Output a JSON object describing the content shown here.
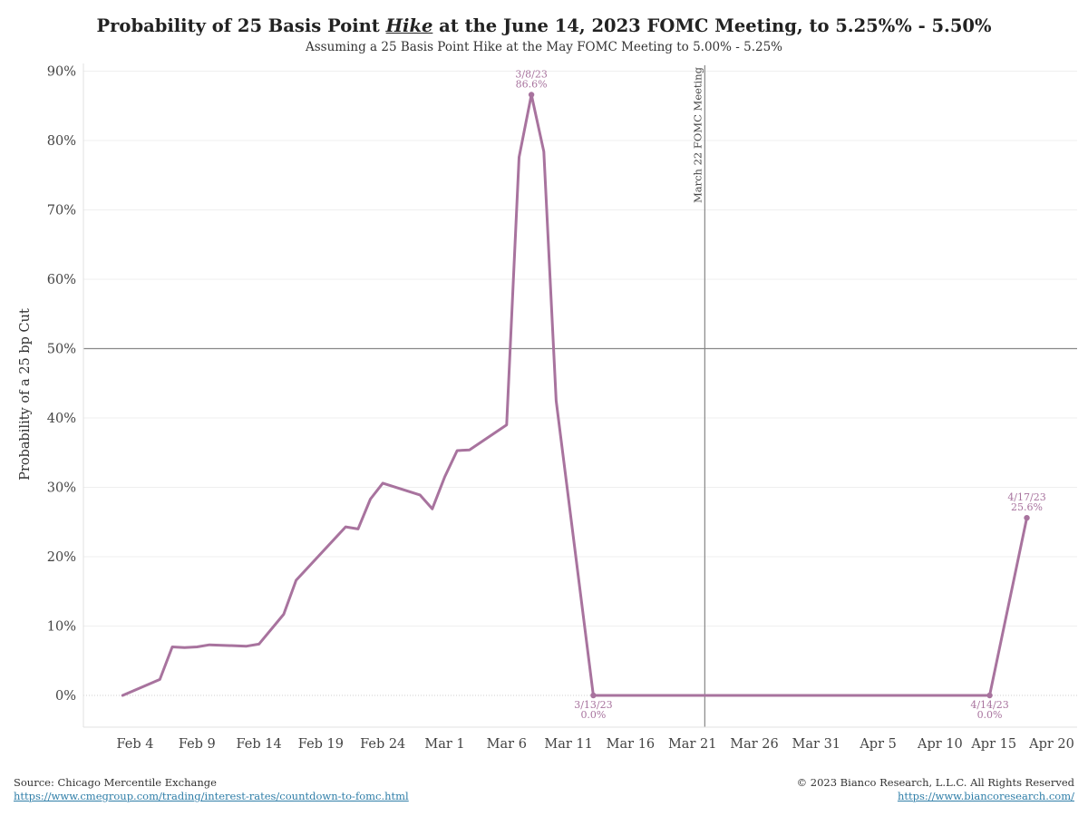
{
  "chart_data": {
    "type": "line",
    "title": {
      "prefix": "Probability of 25 Basis Point ",
      "emphasis": "Hike",
      "suffix": " at the June 14, 2023 FOMC Meeting, to 5.25%% - 5.50%"
    },
    "subtitle": "Assuming a 25 Basis Point Hike at the May FOMC Meeting to 5.00%  - 5.25%",
    "ylabel": "Probability of a 25 bp Cut",
    "xlabel": "",
    "ylim": [
      0,
      90
    ],
    "yticks": [
      "0%",
      "10%",
      "20%",
      "30%",
      "40%",
      "50%",
      "60%",
      "70%",
      "80%",
      "90%"
    ],
    "xticks": [
      "Feb 4",
      "Feb 9",
      "Feb 14",
      "Feb 19",
      "Feb 24",
      "Mar 1",
      "Mar 6",
      "Mar 11",
      "Mar 16",
      "Mar 21",
      "Mar 26",
      "Mar 31",
      "Apr 5",
      "Apr 10",
      "Apr 15",
      "Apr 20"
    ],
    "grid": true,
    "series": [
      {
        "color": "#a8739e",
        "points": [
          [
            "2023-02-03",
            0.0
          ],
          [
            "2023-02-06",
            2.3
          ],
          [
            "2023-02-07",
            7.0
          ],
          [
            "2023-02-08",
            6.9
          ],
          [
            "2023-02-09",
            7.0
          ],
          [
            "2023-02-10",
            7.3
          ],
          [
            "2023-02-13",
            7.1
          ],
          [
            "2023-02-14",
            7.4
          ],
          [
            "2023-02-16",
            11.7
          ],
          [
            "2023-02-17",
            16.6
          ],
          [
            "2023-02-21",
            24.3
          ],
          [
            "2023-02-22",
            24.0
          ],
          [
            "2023-02-23",
            28.3
          ],
          [
            "2023-02-24",
            30.6
          ],
          [
            "2023-02-27",
            28.9
          ],
          [
            "2023-02-28",
            26.9
          ],
          [
            "2023-03-01",
            31.5
          ],
          [
            "2023-03-02",
            35.3
          ],
          [
            "2023-03-03",
            35.4
          ],
          [
            "2023-03-06",
            39.0
          ],
          [
            "2023-03-07",
            77.6
          ],
          [
            "2023-03-08",
            86.6
          ],
          [
            "2023-03-09",
            78.4
          ],
          [
            "2023-03-10",
            42.5
          ],
          [
            "2023-03-13",
            0.0
          ],
          [
            "2023-04-14",
            0.0
          ],
          [
            "2023-04-17",
            25.6
          ]
        ]
      }
    ],
    "reference_lines": [
      {
        "axis": "y",
        "value": 50,
        "color": "#888888"
      },
      {
        "axis": "x",
        "value": "2023-03-22",
        "label": "March 22 FOMC Meeting",
        "color": "#888888"
      }
    ],
    "annotations": [
      {
        "date": "2023-03-08",
        "value": 86.6,
        "line1": "3/8/23",
        "line2": "86.6%",
        "position": "above"
      },
      {
        "date": "2023-03-13",
        "value": 0.0,
        "line1": "3/13/23",
        "line2": "0.0%",
        "position": "below"
      },
      {
        "date": "2023-04-14",
        "value": 0.0,
        "line1": "4/14/23",
        "line2": "0.0%",
        "position": "below"
      },
      {
        "date": "2023-04-17",
        "value": 25.6,
        "line1": "4/17/23",
        "line2": "25.6%",
        "position": "above"
      }
    ]
  },
  "footer": {
    "source_label": "Source: Chicago Mercentile Exchange",
    "source_url": "https://www.cmegroup.com/trading/interest-rates/countdown-to-fomc.html",
    "copyright": "© 2023 Bianco Research, L.L.C. All Rights Reserved",
    "site_url": "https://www.biancoresearch.com/"
  }
}
